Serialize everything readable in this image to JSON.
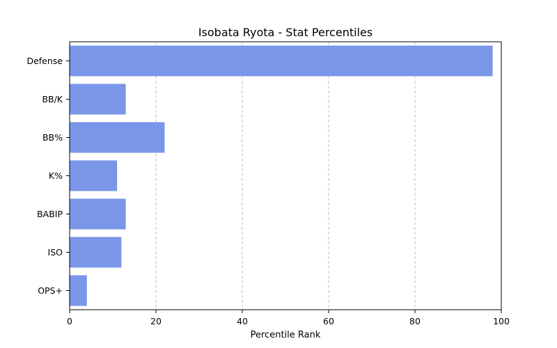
{
  "chart_data": {
    "type": "bar",
    "orientation": "horizontal",
    "title": "Isobata Ryota - Stat Percentiles",
    "xlabel": "Percentile Rank",
    "ylabel": "",
    "xlim": [
      0,
      100
    ],
    "xticks": [
      "0",
      "20",
      "40",
      "60",
      "80",
      "100"
    ],
    "categories": [
      "Defense",
      "BB/K",
      "BB%",
      "K%",
      "BABIP",
      "ISO",
      "OPS+"
    ],
    "values": [
      98,
      13,
      22,
      11,
      13,
      12,
      4
    ],
    "bar_color": "#7a96e8",
    "grid": "x-dashed"
  }
}
